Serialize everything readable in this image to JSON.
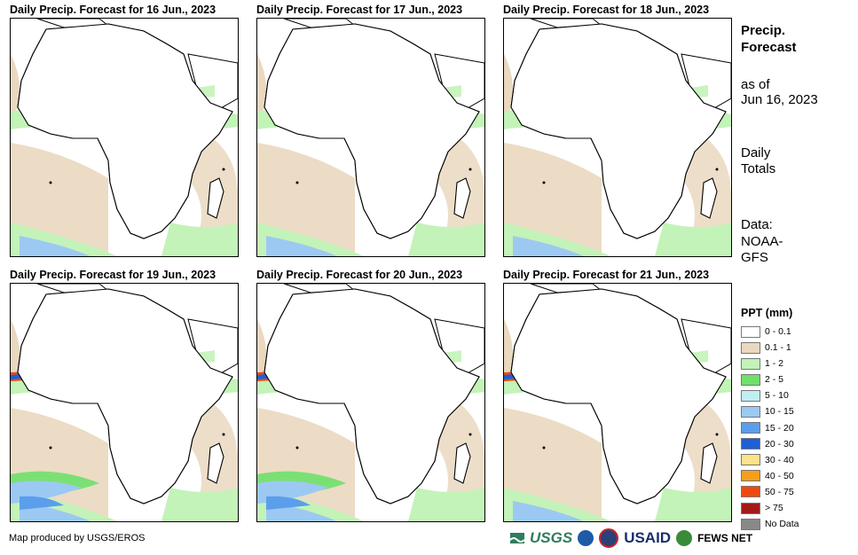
{
  "panels": [
    {
      "title": "Daily Precip. Forecast for 16 Jun., 2023"
    },
    {
      "title": "Daily Precip. Forecast for 17 Jun., 2023"
    },
    {
      "title": "Daily Precip. Forecast for 18 Jun., 2023"
    },
    {
      "title": "Daily Precip. Forecast for 19 Jun., 2023"
    },
    {
      "title": "Daily Precip. Forecast for 20 Jun., 2023"
    },
    {
      "title": "Daily Precip. Forecast for 21 Jun., 2023"
    }
  ],
  "sidebar": {
    "title_line1": "Precip.",
    "title_line2": "Forecast",
    "asof_line1": "as of",
    "asof_line2": "Jun 16, 2023",
    "totals_line1": "Daily",
    "totals_line2": "Totals",
    "data_line1": "Data:",
    "data_line2": "NOAA-",
    "data_line3": "GFS"
  },
  "legend": {
    "title": "PPT (mm)",
    "items": [
      {
        "label": "0 - 0.1",
        "color": "#ffffff"
      },
      {
        "label": "0.1 - 1",
        "color": "#ead8bf"
      },
      {
        "label": "1 - 2",
        "color": "#c3f3b8"
      },
      {
        "label": "2 - 5",
        "color": "#6fe06a"
      },
      {
        "label": "5 - 10",
        "color": "#bfeff3"
      },
      {
        "label": "10 - 15",
        "color": "#9cc9f2"
      },
      {
        "label": "15 - 20",
        "color": "#5a9eec"
      },
      {
        "label": "20 - 30",
        "color": "#1f5fd6"
      },
      {
        "label": "30 - 40",
        "color": "#fbe38a"
      },
      {
        "label": "40 - 50",
        "color": "#f59f1a"
      },
      {
        "label": "50 - 75",
        "color": "#f0490f"
      },
      {
        "label": "> 75",
        "color": "#a11a17"
      },
      {
        "label": "No Data",
        "color": "#888888"
      }
    ]
  },
  "footer": {
    "credit": "Map produced by USGS/EROS",
    "logo_usgs": "USGS",
    "logo_usaid": "USAID",
    "logo_fews": "FEWS NET"
  }
}
